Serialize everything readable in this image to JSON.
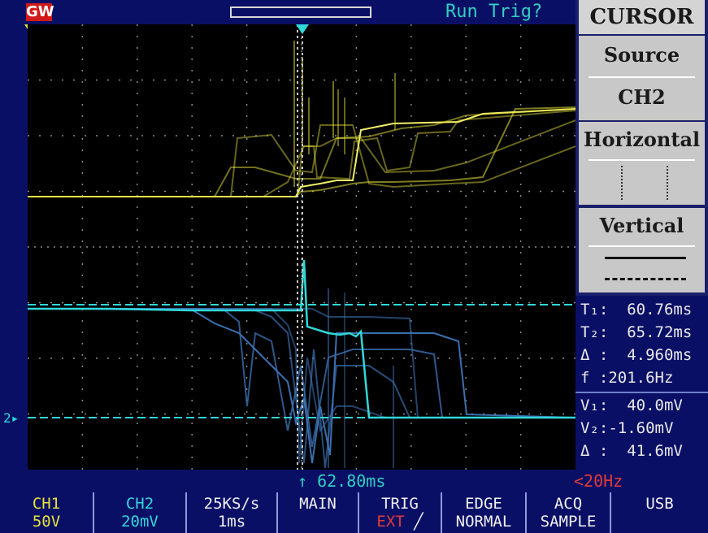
{
  "top": {
    "logo": "GW",
    "status": "Run Trig?"
  },
  "menu": {
    "title": "CURSOR",
    "source_label": "Source",
    "source_value": "CH2",
    "horizontal_label": "Horizontal",
    "vertical_label": "Vertical"
  },
  "readout": {
    "t1": "T₁:  60.76ms",
    "t2": "T₂:  65.72ms",
    "dt": "Δ :  4.960ms",
    "f": "f :201.6Hz",
    "v1": "V₁:  40.0mV",
    "v2": "V₂:-1.60mV",
    "dv": "Δ :  41.6mV"
  },
  "bottom": {
    "trigger_time": "↑ 62.80ms",
    "frequency": "<20Hz"
  },
  "softkeys": {
    "ch1_label": "CH1",
    "ch1_value": "50V",
    "ch2_label": "CH2",
    "ch2_value": "20mV",
    "rate": "25KS/s",
    "timebase": "1ms",
    "main": "MAIN",
    "trig_label": "TRIG",
    "trig_source": "EXT",
    "edge_label": "EDGE",
    "edge_mode": "NORMAL",
    "acq_label": "ACQ",
    "acq_mode": "SAMPLE",
    "usb": "USB"
  },
  "colors": {
    "ch1": "#e6e23a",
    "ch2": "#30d8d8",
    "ch2_persist": "#3a6fb0",
    "background": "#0a0f66",
    "screen": "#000000"
  }
}
